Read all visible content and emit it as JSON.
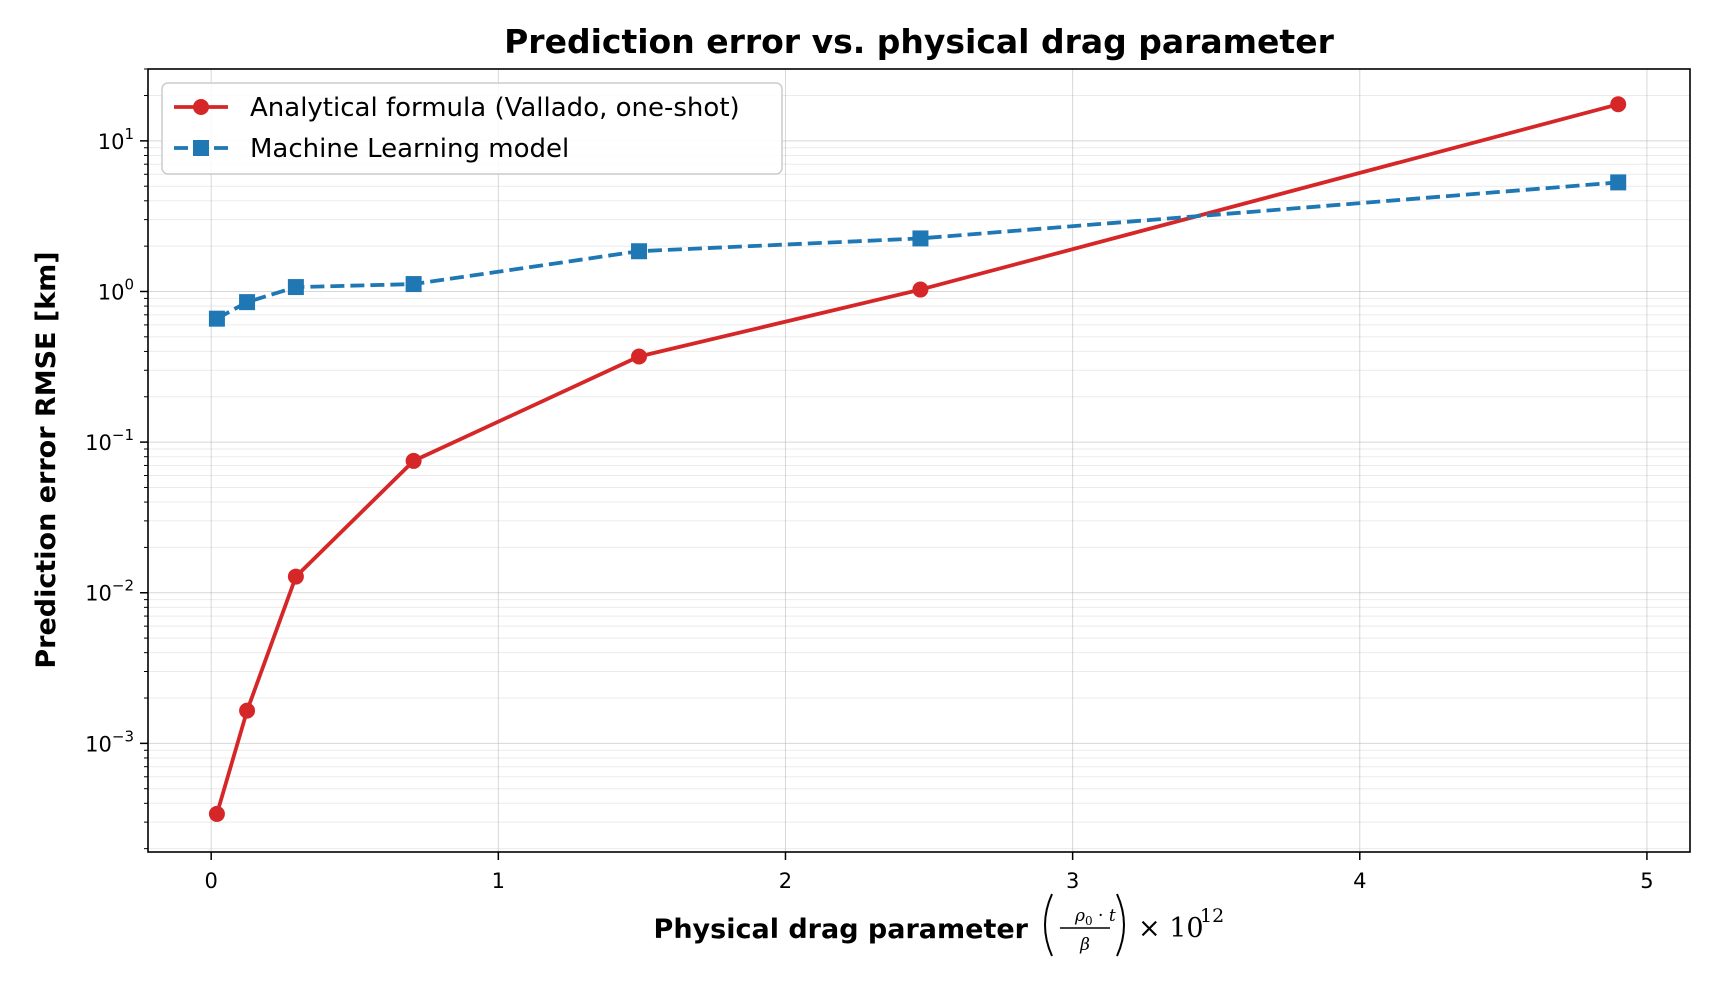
{
  "chart_data": {
    "type": "line",
    "title": "Prediction error vs. physical drag parameter",
    "xlabel": "Physical drag parameter",
    "ylabel": "Prediction error RMSE [km]",
    "y_scale": "log",
    "xlim": [
      -0.22,
      5.15
    ],
    "ylim": [
      0.00019,
      30
    ],
    "grid": true,
    "legend_position": "top-left",
    "x_ticks": [
      {
        "value": 0,
        "label": "0"
      },
      {
        "value": 1,
        "label": "1"
      },
      {
        "value": 2,
        "label": "2"
      },
      {
        "value": 3,
        "label": "3"
      },
      {
        "value": 4,
        "label": "4"
      },
      {
        "value": 5,
        "label": "5"
      }
    ],
    "y_ticks": [
      {
        "value": 0.001,
        "base": "10",
        "exp": "−3"
      },
      {
        "value": 0.01,
        "base": "10",
        "exp": "−2"
      },
      {
        "value": 0.1,
        "base": "10",
        "exp": "−1"
      },
      {
        "value": 1,
        "base": "10",
        "exp": "0"
      },
      {
        "value": 10,
        "base": "10",
        "exp": "1"
      }
    ],
    "series": [
      {
        "name": "Analytical formula (Vallado, one-shot)",
        "color": "#d62728",
        "marker": "circle",
        "line_style": "solid",
        "x": [
          0.02,
          0.125,
          0.295,
          0.705,
          1.49,
          2.47,
          4.9
        ],
        "y": [
          0.00034,
          0.00165,
          0.0128,
          0.075,
          0.37,
          1.03,
          17.5
        ]
      },
      {
        "name": "Machine Learning model",
        "color": "#1f77b4",
        "marker": "square",
        "line_style": "dashed",
        "x": [
          0.02,
          0.125,
          0.295,
          0.705,
          1.49,
          2.47,
          4.9
        ],
        "y": [
          0.66,
          0.85,
          1.07,
          1.12,
          1.85,
          2.25,
          5.3
        ]
      }
    ]
  }
}
